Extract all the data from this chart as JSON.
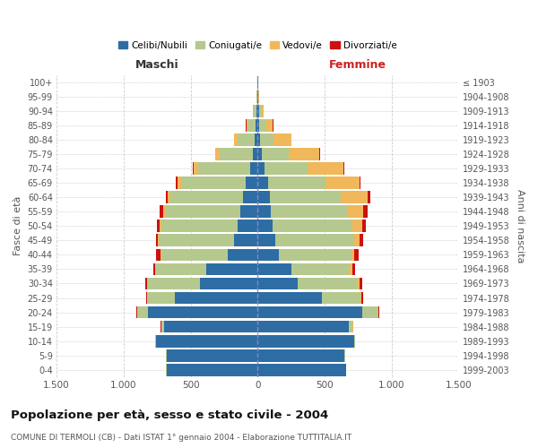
{
  "age_groups": [
    "0-4",
    "5-9",
    "10-14",
    "15-19",
    "20-24",
    "25-29",
    "30-34",
    "35-39",
    "40-44",
    "45-49",
    "50-54",
    "55-59",
    "60-64",
    "65-69",
    "70-74",
    "75-79",
    "80-84",
    "85-89",
    "90-94",
    "95-99",
    "100+"
  ],
  "birth_years": [
    "1999-2003",
    "1994-1998",
    "1989-1993",
    "1984-1988",
    "1979-1983",
    "1974-1978",
    "1969-1973",
    "1964-1968",
    "1959-1963",
    "1954-1958",
    "1949-1953",
    "1944-1948",
    "1939-1943",
    "1934-1938",
    "1929-1933",
    "1924-1928",
    "1919-1923",
    "1914-1918",
    "1909-1913",
    "1904-1908",
    "≤ 1903"
  ],
  "male": {
    "celibi": [
      680,
      680,
      760,
      700,
      820,
      620,
      430,
      380,
      220,
      175,
      150,
      130,
      110,
      90,
      55,
      35,
      20,
      15,
      8,
      3,
      2
    ],
    "coniugati": [
      2,
      2,
      5,
      20,
      80,
      200,
      390,
      380,
      500,
      560,
      570,
      560,
      540,
      480,
      390,
      250,
      130,
      60,
      25,
      5,
      2
    ],
    "vedovi": [
      0,
      0,
      0,
      0,
      1,
      2,
      3,
      5,
      5,
      8,
      10,
      15,
      20,
      30,
      35,
      30,
      25,
      10,
      5,
      0,
      0
    ],
    "divorziati": [
      0,
      0,
      0,
      2,
      5,
      10,
      15,
      15,
      30,
      15,
      20,
      25,
      15,
      8,
      5,
      3,
      2,
      1,
      0,
      0,
      0
    ]
  },
  "female": {
    "nubili": [
      660,
      650,
      720,
      680,
      780,
      480,
      300,
      250,
      160,
      130,
      110,
      100,
      90,
      80,
      50,
      30,
      20,
      15,
      10,
      3,
      2
    ],
    "coniugate": [
      2,
      3,
      8,
      30,
      120,
      290,
      450,
      440,
      540,
      590,
      600,
      570,
      530,
      430,
      320,
      200,
      100,
      50,
      20,
      5,
      2
    ],
    "vedove": [
      0,
      0,
      0,
      1,
      3,
      5,
      10,
      15,
      20,
      40,
      70,
      120,
      200,
      250,
      270,
      230,
      130,
      50,
      15,
      1,
      0
    ],
    "divorziate": [
      0,
      0,
      0,
      2,
      5,
      10,
      20,
      25,
      35,
      25,
      30,
      30,
      20,
      10,
      8,
      5,
      3,
      2,
      0,
      0,
      0
    ]
  },
  "colors": {
    "celibi": "#2e6da4",
    "coniugati": "#b5c98e",
    "vedovi": "#f0b85a",
    "divorziati": "#cc1111"
  },
  "xlim": [
    -1500,
    1500
  ],
  "xticks": [
    -1500,
    -1000,
    -500,
    0,
    500,
    1000,
    1500
  ],
  "xticklabels": [
    "1.500",
    "1.000",
    "500",
    "0",
    "500",
    "1.000",
    "1.500"
  ],
  "title": "Popolazione per età, sesso e stato civile - 2004",
  "subtitle": "COMUNE DI TERMOLI (CB) - Dati ISTAT 1° gennaio 2004 - Elaborazione TUTTITALIA.IT",
  "ylabel_left": "Fasce di età",
  "ylabel_right": "Anni di nascita",
  "label_maschi": "Maschi",
  "label_femmine": "Femmine",
  "legend_labels": [
    "Celibi/Nubili",
    "Coniugati/e",
    "Vedovi/e",
    "Divorziati/e"
  ],
  "bg_color": "#ffffff",
  "grid_color": "#cccccc"
}
